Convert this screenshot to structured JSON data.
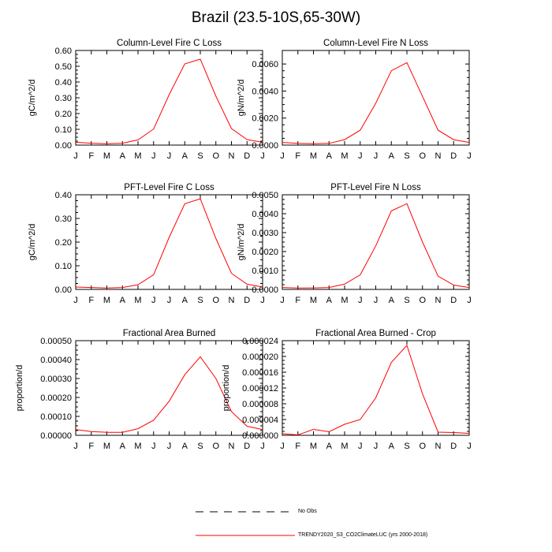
{
  "page_title": "Brazil (23.5-10S,65-30W)",
  "colors": {
    "series": "#ff0000",
    "axis": "#000000",
    "obs_line": "#000000"
  },
  "legend": {
    "obs_label": "No Obs",
    "model_label": "TRENDY2020_S3_CO2ClimateLUC (yrs 2000-2018)"
  },
  "chart_data": [
    {
      "type": "line",
      "title": "Column-Level Fire C Loss",
      "ylabel": "gC/m^2/d",
      "xlabel": "",
      "categories": [
        "J",
        "F",
        "M",
        "A",
        "M",
        "J",
        "J",
        "A",
        "S",
        "O",
        "N",
        "D",
        "J"
      ],
      "ylim": [
        0,
        0.6
      ],
      "yticks": [
        "0.00",
        "0.10",
        "0.20",
        "0.30",
        "0.40",
        "0.50",
        "0.60"
      ],
      "series": [
        {
          "name": "TRENDY2020_S3_CO2ClimateLUC (yrs 2000-2018)",
          "values": [
            0.018,
            0.012,
            0.009,
            0.012,
            0.033,
            0.102,
            0.32,
            0.515,
            0.545,
            0.31,
            0.105,
            0.035,
            0.018
          ]
        }
      ]
    },
    {
      "type": "line",
      "title": "Column-Level Fire N Loss",
      "ylabel": "gN/m^2/d",
      "xlabel": "",
      "categories": [
        "J",
        "F",
        "M",
        "A",
        "M",
        "J",
        "J",
        "A",
        "S",
        "O",
        "N",
        "D",
        "J"
      ],
      "ylim": [
        0,
        0.007
      ],
      "yticks": [
        "0.0000",
        "0.0020",
        "0.0040",
        "0.0060"
      ],
      "series": [
        {
          "name": "TRENDY2020_S3_CO2ClimateLUC (yrs 2000-2018)",
          "values": [
            0.0002,
            0.00013,
            0.0001,
            0.00013,
            0.0004,
            0.0011,
            0.0031,
            0.0055,
            0.0061,
            0.0036,
            0.0011,
            0.0004,
            0.0002
          ]
        }
      ]
    },
    {
      "type": "line",
      "title": "PFT-Level Fire C Loss",
      "ylabel": "gC/m^2/d",
      "xlabel": "",
      "categories": [
        "J",
        "F",
        "M",
        "A",
        "M",
        "J",
        "J",
        "A",
        "S",
        "O",
        "N",
        "D",
        "J"
      ],
      "ylim": [
        0,
        0.4
      ],
      "yticks": [
        "0.00",
        "0.10",
        "0.20",
        "0.30",
        "0.40"
      ],
      "series": [
        {
          "name": "TRENDY2020_S3_CO2ClimateLUC (yrs 2000-2018)",
          "values": [
            0.01,
            0.008,
            0.006,
            0.008,
            0.02,
            0.062,
            0.22,
            0.362,
            0.383,
            0.215,
            0.068,
            0.022,
            0.01
          ]
        }
      ]
    },
    {
      "type": "line",
      "title": "PFT-Level Fire N Loss",
      "ylabel": "gN/m^2/d",
      "xlabel": "",
      "categories": [
        "J",
        "F",
        "M",
        "A",
        "M",
        "J",
        "J",
        "A",
        "S",
        "O",
        "N",
        "D",
        "J"
      ],
      "ylim": [
        0,
        0.005
      ],
      "yticks": [
        "0.0000",
        "0.0010",
        "0.0020",
        "0.0030",
        "0.0040",
        "0.0050"
      ],
      "series": [
        {
          "name": "TRENDY2020_S3_CO2ClimateLUC (yrs 2000-2018)",
          "values": [
            0.0001,
            7e-05,
            8e-05,
            0.0001,
            0.00028,
            0.00077,
            0.0023,
            0.00415,
            0.00453,
            0.0025,
            0.0007,
            0.00023,
            0.0001
          ]
        }
      ]
    },
    {
      "type": "line",
      "title": "Fractional Area Burned",
      "ylabel": "proportion/d",
      "xlabel": "",
      "categories": [
        "J",
        "F",
        "M",
        "A",
        "M",
        "J",
        "J",
        "A",
        "S",
        "O",
        "N",
        "D",
        "J"
      ],
      "ylim": [
        0,
        0.0005
      ],
      "yticks": [
        "0.00000",
        "0.00010",
        "0.00020",
        "0.00030",
        "0.00040",
        "0.00050"
      ],
      "series": [
        {
          "name": "TRENDY2020_S3_CO2ClimateLUC (yrs 2000-2018)",
          "values": [
            3e-05,
            2e-05,
            1.6e-05,
            1.6e-05,
            3.5e-05,
            8e-05,
            0.00018,
            0.00032,
            0.000415,
            0.0003,
            0.000125,
            4.8e-05,
            3e-05
          ]
        }
      ]
    },
    {
      "type": "line",
      "title": "Fractional Area Burned - Crop",
      "ylabel": "proportion/d",
      "xlabel": "",
      "categories": [
        "J",
        "F",
        "M",
        "A",
        "M",
        "J",
        "J",
        "A",
        "S",
        "O",
        "N",
        "D",
        "J"
      ],
      "ylim": [
        0,
        2.4e-05
      ],
      "yticks": [
        "0.000000",
        "0.000004",
        "0.000008",
        "0.000012",
        "0.000016",
        "0.000020",
        "0.000024"
      ],
      "series": [
        {
          "name": "TRENDY2020_S3_CO2ClimateLUC (yrs 2000-2018)",
          "values": [
            4e-07,
            1e-07,
            1.5e-06,
            9e-07,
            2.8e-06,
            4e-06,
            9.5e-06,
            1.85e-05,
            2.28e-05,
            1.05e-05,
            8e-07,
            7e-07,
            5e-07
          ]
        }
      ]
    }
  ]
}
